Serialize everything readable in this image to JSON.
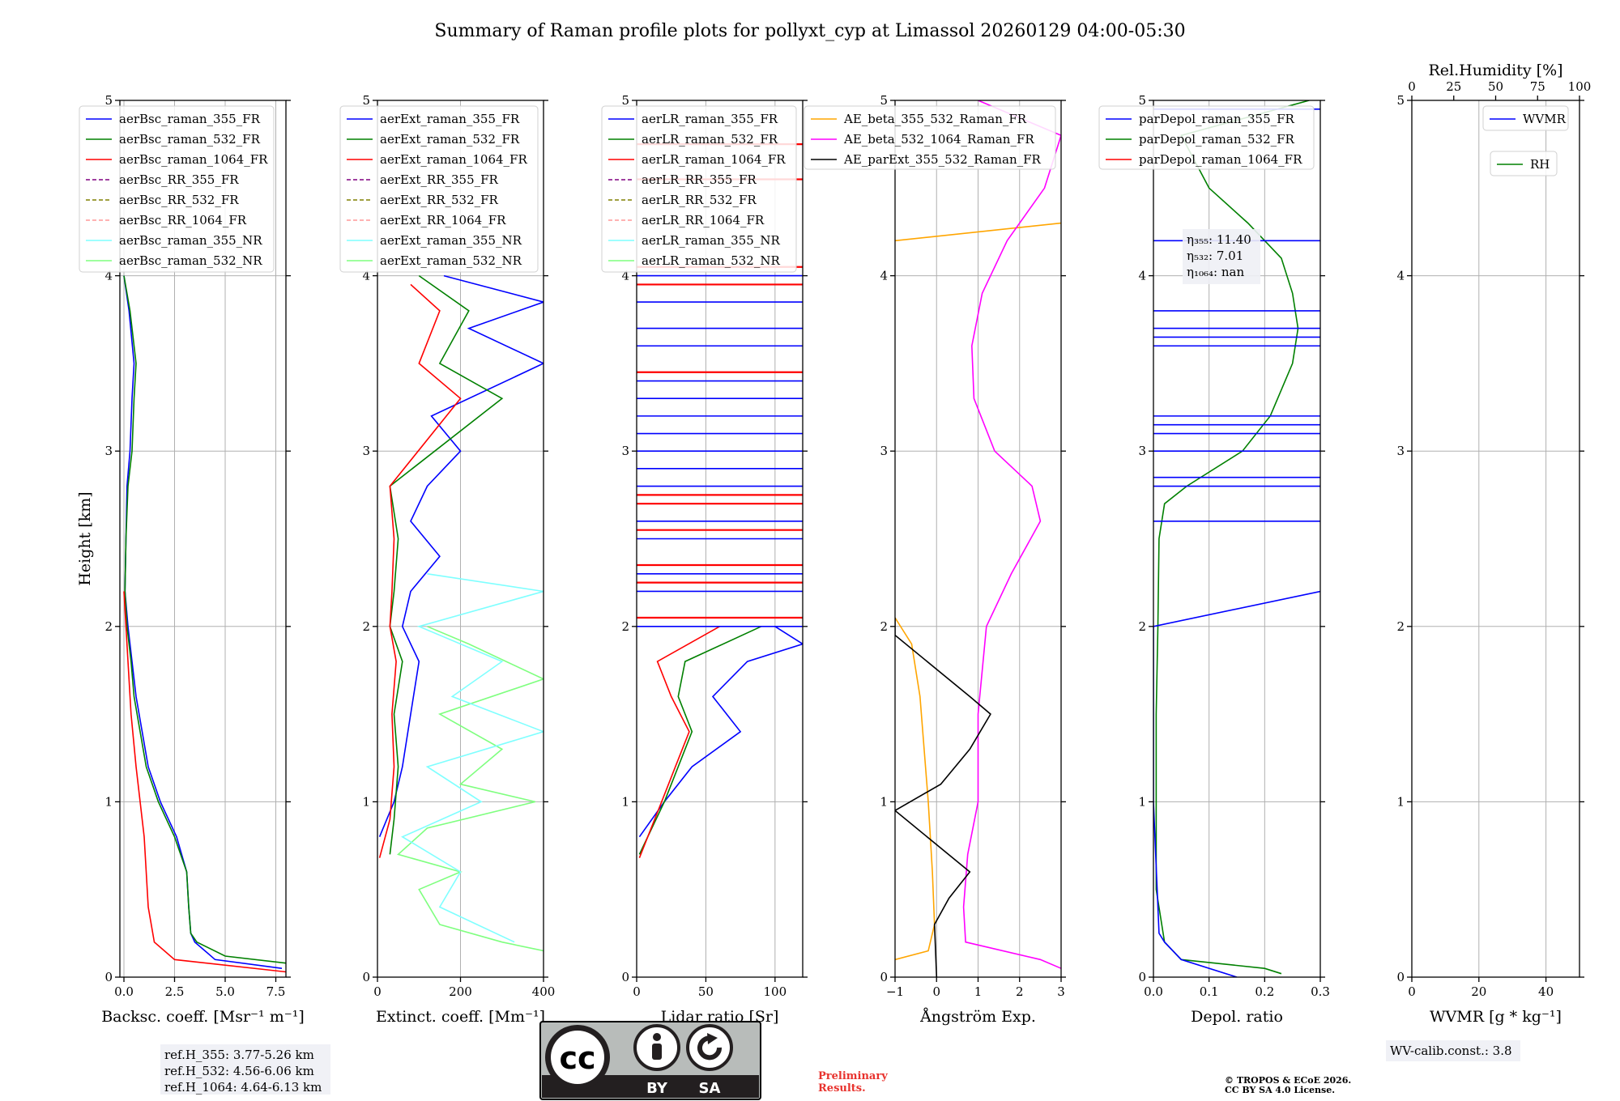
{
  "figure": {
    "title": "Summary of Raman profile plots for pollyxt_cyp at Limassol 20260129 04:00-05:30"
  },
  "chart_data": [
    {
      "type": "line",
      "id": "backscatter",
      "xlabel": "Backsc. coeff. [Msr⁻¹ m⁻¹]",
      "ylabel": "Height [km]",
      "xlim": [
        -0.2,
        8
      ],
      "ylim": [
        0,
        5
      ],
      "xticks": [
        0,
        2.5,
        5,
        7.5
      ],
      "xtick_labels": [
        "0.0",
        "2.5",
        "5.0",
        "7.5"
      ],
      "yticks": [
        0,
        1,
        2,
        3,
        4,
        5
      ],
      "legend": [
        {
          "label": "aerBsc_raman_355_FR",
          "color": "#0000ff",
          "dash": false
        },
        {
          "label": "aerBsc_raman_532_FR",
          "color": "#008000",
          "dash": false
        },
        {
          "label": "aerBsc_raman_1064_FR",
          "color": "#ff0000",
          "dash": false
        },
        {
          "label": "aerBsc_RR_355_FR",
          "color": "#800080",
          "dash": true
        },
        {
          "label": "aerBsc_RR_532_FR",
          "color": "#808000",
          "dash": true
        },
        {
          "label": "aerBsc_RR_1064_FR",
          "color": "#ff9999",
          "dash": true
        },
        {
          "label": "aerBsc_raman_355_NR",
          "color": "#7fffff",
          "dash": false
        },
        {
          "label": "aerBsc_raman_532_NR",
          "color": "#7fff7f",
          "dash": false
        }
      ],
      "series": [
        {
          "name": "aerBsc_raman_355_FR",
          "color": "#0000ff",
          "y": [
            0.05,
            0.1,
            0.2,
            0.25,
            0.4,
            0.6,
            0.8,
            1.0,
            1.2,
            1.4,
            1.6,
            1.8,
            2.0,
            2.2,
            2.5,
            2.8,
            3.0,
            3.3,
            3.5,
            3.8,
            4.0
          ],
          "x": [
            7.8,
            4.5,
            3.5,
            3.3,
            3.2,
            3.1,
            2.6,
            1.8,
            1.2,
            0.9,
            0.6,
            0.4,
            0.2,
            0.05,
            0.1,
            0.15,
            0.3,
            0.4,
            0.5,
            0.25,
            0.0
          ]
        },
        {
          "name": "aerBsc_raman_532_FR",
          "color": "#008000",
          "y": [
            0.08,
            0.12,
            0.2,
            0.25,
            0.4,
            0.6,
            0.8,
            1.0,
            1.2,
            1.4,
            1.6,
            1.8,
            2.0,
            2.2,
            2.5,
            2.8,
            3.0,
            3.3,
            3.5,
            3.8,
            4.0
          ],
          "x": [
            8,
            5,
            3.6,
            3.3,
            3.2,
            3.1,
            2.5,
            1.7,
            1.1,
            0.8,
            0.5,
            0.35,
            0.15,
            0.05,
            0.1,
            0.2,
            0.4,
            0.5,
            0.6,
            0.3,
            0.0
          ]
        },
        {
          "name": "aerBsc_raman_1064_FR",
          "color": "#ff0000",
          "y": [
            0.03,
            0.1,
            0.2,
            0.4,
            0.6,
            0.8,
            1.0,
            1.2,
            1.5,
            1.8,
            2.0,
            2.2
          ],
          "x": [
            8,
            2.5,
            1.5,
            1.2,
            1.1,
            1.0,
            0.8,
            0.6,
            0.35,
            0.2,
            0.1,
            0.0
          ]
        }
      ],
      "annotation": [
        "ref.H_355: 3.77-5.26 km",
        "ref.H_532: 4.56-6.06 km",
        "ref.H_1064: 4.64-6.13 km"
      ]
    },
    {
      "type": "line",
      "id": "extinction",
      "xlabel": "Extinct. coeff. [Mm⁻¹]",
      "xlim": [
        0,
        400
      ],
      "ylim": [
        0,
        5
      ],
      "xticks": [
        0,
        200,
        400
      ],
      "xtick_labels": [
        "0",
        "200",
        "400"
      ],
      "yticks": [
        0,
        1,
        2,
        3,
        4,
        5
      ],
      "legend": [
        {
          "label": "aerExt_raman_355_FR",
          "color": "#0000ff",
          "dash": false
        },
        {
          "label": "aerExt_raman_532_FR",
          "color": "#008000",
          "dash": false
        },
        {
          "label": "aerExt_raman_1064_FR",
          "color": "#ff0000",
          "dash": false
        },
        {
          "label": "aerExt_RR_355_FR",
          "color": "#800080",
          "dash": true
        },
        {
          "label": "aerExt_RR_532_FR",
          "color": "#808000",
          "dash": true
        },
        {
          "label": "aerExt_RR_1064_FR",
          "color": "#ff9999",
          "dash": true
        },
        {
          "label": "aerExt_raman_355_NR",
          "color": "#7fffff",
          "dash": false
        },
        {
          "label": "aerExt_raman_532_NR",
          "color": "#7fff7f",
          "dash": false
        }
      ],
      "series": [
        {
          "name": "aerExt_raman_532_NR",
          "color": "#7fff7f",
          "y": [
            0.15,
            0.2,
            0.3,
            0.5,
            0.6,
            0.7,
            0.85,
            1.0,
            1.1,
            1.3,
            1.5,
            1.7,
            1.9,
            2.0
          ],
          "x": [
            400,
            300,
            150,
            100,
            200,
            50,
            120,
            380,
            200,
            300,
            150,
            400,
            220,
            120
          ]
        },
        {
          "name": "aerExt_raman_355_NR",
          "color": "#7fffff",
          "y": [
            0.2,
            0.4,
            0.6,
            0.8,
            1.0,
            1.2,
            1.4,
            1.6,
            1.8,
            2.0,
            2.2,
            2.3
          ],
          "x": [
            330,
            150,
            200,
            60,
            250,
            120,
            400,
            180,
            300,
            100,
            400,
            120
          ]
        },
        {
          "name": "aerExt_raman_355_FR",
          "color": "#0000ff",
          "y": [
            0.8,
            1.0,
            1.2,
            1.5,
            1.8,
            2.0,
            2.2,
            2.4,
            2.6,
            2.8,
            3.0,
            3.2,
            3.5,
            3.7,
            3.85,
            4.0
          ],
          "x": [
            5,
            40,
            60,
            80,
            100,
            60,
            80,
            150,
            80,
            120,
            200,
            130,
            400,
            220,
            400,
            160
          ]
        },
        {
          "name": "aerExt_raman_532_FR",
          "color": "#008000",
          "y": [
            0.7,
            0.9,
            1.2,
            1.5,
            1.8,
            2.0,
            2.2,
            2.5,
            2.8,
            3.3,
            3.5,
            3.8,
            4.0
          ],
          "x": [
            30,
            40,
            50,
            40,
            60,
            30,
            40,
            50,
            30,
            300,
            150,
            220,
            100
          ]
        },
        {
          "name": "aerExt_raman_1064_FR",
          "color": "#ff0000",
          "y": [
            0.68,
            0.9,
            1.2,
            1.5,
            1.8,
            2.0,
            2.2,
            2.5,
            2.8,
            3.3,
            3.5,
            3.8,
            3.95
          ],
          "x": [
            5,
            30,
            40,
            35,
            45,
            30,
            35,
            40,
            30,
            200,
            100,
            150,
            80
          ]
        }
      ]
    },
    {
      "type": "line",
      "id": "lidar_ratio",
      "xlabel": "Lidar ratio [Sr]",
      "xlim": [
        0,
        120
      ],
      "ylim": [
        0,
        5
      ],
      "xticks": [
        0,
        50,
        100
      ],
      "xtick_labels": [
        "0",
        "50",
        "100"
      ],
      "yticks": [
        0,
        1,
        2,
        3,
        4,
        5
      ],
      "legend": [
        {
          "label": "aerLR_raman_355_FR",
          "color": "#0000ff",
          "dash": false
        },
        {
          "label": "aerLR_raman_532_FR",
          "color": "#008000",
          "dash": false
        },
        {
          "label": "aerLR_raman_1064_FR",
          "color": "#ff0000",
          "dash": false
        },
        {
          "label": "aerLR_RR_355_FR",
          "color": "#800080",
          "dash": true
        },
        {
          "label": "aerLR_RR_532_FR",
          "color": "#808000",
          "dash": true
        },
        {
          "label": "aerLR_RR_1064_FR",
          "color": "#ff9999",
          "dash": true
        },
        {
          "label": "aerLR_raman_355_NR",
          "color": "#7fffff",
          "dash": false
        },
        {
          "label": "aerLR_raman_532_NR",
          "color": "#7fff7f",
          "dash": false
        }
      ],
      "series": [
        {
          "name": "aerLR_raman_355_FR",
          "color": "#0000ff",
          "y": [
            0.8,
            1.0,
            1.2,
            1.4,
            1.6,
            1.8,
            1.9,
            2.0
          ],
          "x": [
            2,
            20,
            40,
            75,
            55,
            80,
            120,
            100
          ]
        },
        {
          "name": "aerLR_raman_532_FR",
          "color": "#008000",
          "y": [
            0.7,
            1.0,
            1.2,
            1.4,
            1.6,
            1.8,
            2.0
          ],
          "x": [
            2,
            20,
            30,
            40,
            30,
            35,
            90
          ]
        },
        {
          "name": "aerLR_raman_1064_FR",
          "color": "#ff0000",
          "y": [
            0.68,
            1.0,
            1.2,
            1.4,
            1.6,
            1.8,
            2.0
          ],
          "x": [
            2,
            18,
            28,
            38,
            25,
            15,
            60
          ]
        }
      ],
      "hlines_355": [
        2.0,
        2.2,
        2.3,
        2.5,
        2.6,
        2.8,
        2.9,
        3.0,
        3.1,
        3.2,
        3.3,
        3.4,
        3.6,
        3.7,
        3.85,
        4.0
      ],
      "hlines_1064": [
        2.05,
        2.25,
        2.35,
        2.55,
        2.7,
        2.75,
        3.45,
        3.95,
        4.05,
        4.55,
        4.75
      ]
    },
    {
      "type": "line",
      "id": "angstrom",
      "xlabel": "Ångström Exp.",
      "xlim": [
        -1,
        3
      ],
      "ylim": [
        0,
        5
      ],
      "xticks": [
        -1,
        0,
        1,
        2,
        3
      ],
      "xtick_labels": [
        "−1",
        "0",
        "1",
        "2",
        "3"
      ],
      "yticks": [
        0,
        1,
        2,
        3,
        4,
        5
      ],
      "legend": [
        {
          "label": "AE_beta_355_532_Raman_FR",
          "color": "#ffa500",
          "dash": false
        },
        {
          "label": "AE_beta_532_1064_Raman_FR",
          "color": "#ff00ff",
          "dash": false
        },
        {
          "label": "AE_parExt_355_532_Raman_FR",
          "color": "#000000",
          "dash": false
        }
      ],
      "series": [
        {
          "name": "AE_beta_355_532_Raman_FR",
          "color": "#ffa500",
          "y": [
            0.1,
            0.15,
            0.3,
            0.6,
            1.0,
            1.6,
            1.9,
            2.05
          ],
          "x": [
            -1,
            -0.2,
            -0.05,
            -0.1,
            -0.2,
            -0.4,
            -0.6,
            -1
          ]
        },
        {
          "name": "AE_beta_355_532_Raman_FR_upper",
          "color": "#ffa500",
          "y": [
            4.2,
            4.3
          ],
          "x": [
            -1,
            3
          ]
        },
        {
          "name": "AE_beta_532_1064_Raman_FR",
          "color": "#ff00ff",
          "y": [
            0.05,
            0.1,
            0.2,
            0.4,
            0.7,
            1.0,
            1.5,
            2.0,
            2.3,
            2.6,
            2.8,
            3.0,
            3.3,
            3.6,
            3.9,
            4.2,
            4.5,
            4.8,
            5.0
          ],
          "x": [
            3,
            2.5,
            0.7,
            0.65,
            0.75,
            1.0,
            1.0,
            1.2,
            1.8,
            2.5,
            2.3,
            1.4,
            0.9,
            0.85,
            1.1,
            1.7,
            2.6,
            3,
            1
          ]
        },
        {
          "name": "AE_parExt_355_532_Raman_FR",
          "color": "#000000",
          "y": [
            0,
            0.3,
            0.45,
            0.6,
            0.95,
            1.1,
            1.3,
            1.5,
            1.6,
            1.95,
            2.05
          ],
          "x": [
            0,
            -0.05,
            0.3,
            0.8,
            -1,
            0.1,
            0.8,
            1.3,
            0.8,
            -1,
            -1
          ]
        }
      ]
    },
    {
      "type": "line",
      "id": "depol",
      "xlabel": "Depol. ratio",
      "xlim": [
        0,
        0.3
      ],
      "ylim": [
        0,
        5
      ],
      "xticks": [
        0,
        0.1,
        0.2,
        0.3
      ],
      "xtick_labels": [
        "0.0",
        "0.1",
        "0.2",
        "0.3"
      ],
      "yticks": [
        0,
        1,
        2,
        3,
        4,
        5
      ],
      "legend": [
        {
          "label": "parDepol_raman_355_FR",
          "color": "#0000ff",
          "dash": false
        },
        {
          "label": "parDepol_raman_532_FR",
          "color": "#008000",
          "dash": false
        },
        {
          "label": "parDepol_raman_1064_FR",
          "color": "#ff0000",
          "dash": false
        }
      ],
      "series": [
        {
          "name": "parDepol_raman_532_FR",
          "color": "#008000",
          "y": [
            0.02,
            0.05,
            0.1,
            0.2,
            0.5,
            1.0,
            1.5,
            2.0,
            2.5,
            2.7,
            2.8,
            3.0,
            3.2,
            3.5,
            3.7,
            3.9,
            4.1,
            4.3,
            4.5,
            4.8,
            5.0
          ],
          "x": [
            0.23,
            0.2,
            0.05,
            0.02,
            0.005,
            0.005,
            0.005,
            0.008,
            0.01,
            0.02,
            0.06,
            0.16,
            0.21,
            0.25,
            0.26,
            0.25,
            0.23,
            0.17,
            0.1,
            0.05,
            0.28
          ]
        },
        {
          "name": "parDepol_raman_355_FR",
          "color": "#0000ff",
          "y": [
            0,
            0.1,
            0.2,
            0.25,
            1.0,
            2.0,
            2.2
          ],
          "x": [
            0.15,
            0.05,
            0.02,
            0.01,
            0.0,
            0.0,
            0.3
          ]
        }
      ],
      "hlines_355": [
        2.6,
        2.8,
        2.85,
        3.0,
        3.1,
        3.15,
        3.2,
        3.6,
        3.65,
        3.7,
        3.8,
        4.2,
        4.95
      ],
      "annotation": [
        "η₃₅₅: 11.40",
        "η₅₃₂: 7.01",
        "η₁₀₆₄: nan"
      ]
    },
    {
      "type": "line",
      "id": "wvmr",
      "xlabel": "WVMR [g * kg⁻¹]",
      "top_xlabel": "Rel.Humidity [%]",
      "xlim": [
        0,
        50
      ],
      "ylim": [
        0,
        5
      ],
      "xticks": [
        0,
        20,
        40
      ],
      "xtick_labels": [
        "0",
        "20",
        "40"
      ],
      "top_xlim": [
        0,
        100
      ],
      "top_xticks": [
        0,
        25,
        50,
        75,
        100
      ],
      "top_xtick_labels": [
        "0",
        "25",
        "50",
        "75",
        "100"
      ],
      "yticks": [
        0,
        1,
        2,
        3,
        4,
        5
      ],
      "legend": [
        {
          "label": "WVMR",
          "color": "#0000ff",
          "dash": false
        }
      ],
      "legend2": [
        {
          "label": "RH",
          "color": "#008000",
          "dash": false
        }
      ],
      "series": [],
      "annotation": [
        "WV-calib.const.: 3.8"
      ]
    }
  ],
  "footer": {
    "cc_label": "cc",
    "by_label": "BY",
    "sa_label": "SA",
    "preliminary": "Preliminary\nResults.",
    "copyright_line1": "© TROPOS & ECoE 2026.",
    "copyright_line2": "CC BY SA 4.0 License."
  },
  "colors": {
    "grid": "#b0b0b0",
    "preliminary": "#e8322d",
    "cc_bg": "#b8bcba",
    "cc_dark": "#231f20"
  }
}
